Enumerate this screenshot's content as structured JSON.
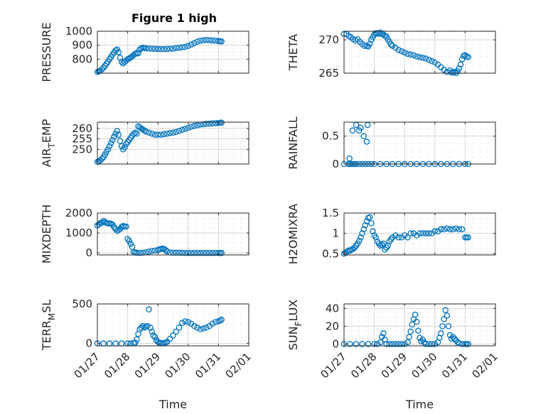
{
  "figure": {
    "title": "Figure 1 high"
  },
  "colors": {
    "marker": "#0072bd",
    "axis": "#262626",
    "grid": "#d6d6d6",
    "minor_grid": "#e6e6e6"
  },
  "x_axis": {
    "label": "Time",
    "ticks": [
      0,
      1,
      2,
      3,
      4,
      5
    ],
    "tick_labels": [
      "01/27",
      "01/28",
      "01/29",
      "01/30",
      "01/31",
      "02/01"
    ],
    "range_days": [
      0,
      5
    ]
  },
  "chart_data": [
    {
      "type": "scatter",
      "name": "PRESSURE",
      "ylabel": "PRESSURE",
      "ylim": [
        700,
        1000
      ],
      "yticks": [
        800,
        900,
        1000
      ],
      "x": [
        0.0,
        0.05,
        0.1,
        0.15,
        0.2,
        0.25,
        0.3,
        0.35,
        0.4,
        0.45,
        0.5,
        0.55,
        0.6,
        0.65,
        0.7,
        0.75,
        0.8,
        0.85,
        0.9,
        0.95,
        1.0,
        1.05,
        1.1,
        1.15,
        1.2,
        1.25,
        1.3,
        1.35,
        1.4,
        1.45,
        1.5,
        1.55,
        1.6,
        1.7,
        1.8,
        1.9,
        2.0,
        2.1,
        2.2,
        2.3,
        2.4,
        2.5,
        2.6,
        2.7,
        2.8,
        2.9,
        3.0,
        3.1,
        3.2,
        3.3,
        3.4,
        3.5,
        3.6,
        3.7,
        3.8,
        3.9,
        4.0,
        4.05,
        4.1
      ],
      "values": [
        708,
        712,
        718,
        728,
        738,
        752,
        768,
        782,
        800,
        815,
        832,
        848,
        862,
        870,
        850,
        810,
        780,
        770,
        780,
        790,
        800,
        805,
        812,
        820,
        830,
        838,
        845,
        842,
        870,
        878,
        882,
        880,
        878,
        876,
        875,
        874,
        873,
        872,
        872,
        873,
        875,
        875,
        880,
        882,
        885,
        888,
        895,
        905,
        915,
        925,
        932,
        935,
        938,
        936,
        934,
        932,
        930,
        928,
        926
      ]
    },
    {
      "type": "scatter",
      "name": "THETA",
      "ylabel": "THETA",
      "ylim": [
        265,
        271.3
      ],
      "yticks": [
        265,
        270
      ],
      "x": [
        0.0,
        0.08,
        0.15,
        0.22,
        0.3,
        0.38,
        0.45,
        0.52,
        0.6,
        0.68,
        0.75,
        0.8,
        0.85,
        0.9,
        0.95,
        1.0,
        1.05,
        1.1,
        1.15,
        1.2,
        1.25,
        1.3,
        1.35,
        1.4,
        1.45,
        1.5,
        1.55,
        1.6,
        1.7,
        1.8,
        1.9,
        2.0,
        2.1,
        2.2,
        2.3,
        2.4,
        2.5,
        2.6,
        2.7,
        2.8,
        2.9,
        3.0,
        3.1,
        3.2,
        3.3,
        3.4,
        3.5,
        3.55,
        3.6,
        3.65,
        3.7,
        3.75,
        3.8,
        3.85,
        3.9,
        3.95,
        4.0,
        4.05,
        4.1
      ],
      "values": [
        270.9,
        270.9,
        270.6,
        270.4,
        270.1,
        269.9,
        270.1,
        269.7,
        269.4,
        269.1,
        269.1,
        269.0,
        269.4,
        270.0,
        270.4,
        270.8,
        271.0,
        271.0,
        270.9,
        271.1,
        270.9,
        270.8,
        270.6,
        270.5,
        270.1,
        269.7,
        269.3,
        269.1,
        268.8,
        268.5,
        268.3,
        268.1,
        267.9,
        267.8,
        267.7,
        267.5,
        267.4,
        267.3,
        267.2,
        267.0,
        266.8,
        266.6,
        266.3,
        265.9,
        265.5,
        265.2,
        265.4,
        265.1,
        265.1,
        265.2,
        265.0,
        265.3,
        265.7,
        266.3,
        267.1,
        267.6,
        267.7,
        267.5,
        267.4
      ]
    },
    {
      "type": "scatter",
      "name": "AIR_TEMP",
      "ylabel": "AIR_TEMP",
      "ylabel_main": "AIR",
      "ylabel_sub": "T",
      "ylabel_rest": "EMP",
      "ylim": [
        243,
        263
      ],
      "yticks": [
        250,
        255,
        260
      ],
      "x": [
        0.0,
        0.05,
        0.1,
        0.15,
        0.2,
        0.25,
        0.3,
        0.35,
        0.4,
        0.45,
        0.5,
        0.55,
        0.6,
        0.65,
        0.7,
        0.75,
        0.8,
        0.85,
        0.9,
        0.95,
        1.0,
        1.05,
        1.1,
        1.15,
        1.2,
        1.25,
        1.3,
        1.35,
        1.4,
        1.45,
        1.5,
        1.55,
        1.6,
        1.7,
        1.8,
        1.9,
        2.0,
        2.1,
        2.2,
        2.3,
        2.4,
        2.5,
        2.6,
        2.7,
        2.8,
        2.9,
        3.0,
        3.1,
        3.2,
        3.3,
        3.4,
        3.5,
        3.6,
        3.7,
        3.8,
        3.9,
        4.0,
        4.05,
        4.1
      ],
      "values": [
        244.0,
        244.3,
        244.8,
        245.5,
        246.3,
        247.5,
        248.8,
        250.0,
        251.5,
        253.0,
        254.5,
        256.0,
        257.5,
        258.8,
        257.0,
        254.0,
        251.5,
        250.0,
        251.0,
        252.5,
        253.5,
        254.5,
        255.5,
        256.5,
        257.5,
        258.0,
        257.5,
        261.0,
        260.5,
        260.0,
        259.5,
        259.0,
        258.5,
        258.0,
        257.5,
        257.0,
        257.0,
        257.0,
        257.2,
        257.5,
        257.8,
        258.0,
        258.3,
        258.8,
        259.3,
        259.8,
        260.3,
        260.8,
        261.2,
        261.5,
        261.8,
        262.0,
        262.2,
        262.3,
        262.4,
        262.5,
        262.6,
        262.7,
        262.8
      ]
    },
    {
      "type": "scatter",
      "name": "RAINFALL",
      "ylabel": "RAINFALL",
      "ylim": [
        0,
        0.75
      ],
      "yticks": [
        0,
        0.5
      ],
      "x": [
        0.0,
        0.15,
        0.2,
        0.25,
        0.3,
        0.35,
        0.4,
        0.5,
        0.6,
        0.7,
        0.8,
        0.9,
        1.0,
        1.2,
        1.4,
        1.6,
        1.8,
        2.0,
        2.2,
        2.4,
        2.6,
        2.8,
        3.0,
        3.2,
        3.4,
        3.6,
        3.8,
        4.0,
        4.1,
        0.18,
        0.28,
        0.4,
        0.5,
        0.55,
        0.65,
        0.75,
        0.78
      ],
      "values": [
        0,
        0,
        0,
        0,
        0,
        0,
        0,
        0,
        0,
        0,
        0,
        0,
        0,
        0,
        0,
        0,
        0,
        0,
        0,
        0,
        0,
        0,
        0,
        0,
        0,
        0,
        0,
        0,
        0,
        0.1,
        0.6,
        0.7,
        0.6,
        0.65,
        0.5,
        0.4,
        0.7
      ]
    },
    {
      "type": "scatter",
      "name": "MIXDEPTH",
      "ylabel": "MIXDEPTH",
      "ylim": [
        -100,
        2000
      ],
      "yticks": [
        0,
        1000,
        2000
      ],
      "x": [
        0.0,
        0.05,
        0.1,
        0.15,
        0.2,
        0.25,
        0.3,
        0.35,
        0.4,
        0.45,
        0.5,
        0.55,
        0.6,
        0.65,
        0.7,
        0.75,
        0.8,
        0.85,
        0.9,
        0.95,
        1.0,
        1.05,
        1.1,
        1.15,
        1.2,
        1.25,
        1.3,
        1.4,
        1.5,
        1.6,
        1.7,
        1.8,
        1.9,
        2.0,
        2.05,
        2.1,
        2.15,
        2.2,
        2.25,
        2.3,
        2.4,
        2.5,
        2.6,
        2.7,
        2.8,
        2.9,
        3.0,
        3.1,
        3.2,
        3.3,
        3.4,
        3.5,
        3.6,
        3.7,
        3.8,
        3.9,
        4.0,
        4.05,
        4.1
      ],
      "values": [
        1380,
        1430,
        1500,
        1520,
        1600,
        1550,
        1500,
        1480,
        1480,
        1460,
        1420,
        1300,
        1200,
        1100,
        1150,
        1200,
        1300,
        1350,
        1330,
        1320,
        700,
        600,
        450,
        300,
        50,
        20,
        10,
        0,
        10,
        30,
        60,
        100,
        120,
        150,
        180,
        200,
        220,
        200,
        150,
        80,
        20,
        10,
        10,
        10,
        5,
        0,
        0,
        0,
        0,
        0,
        0,
        0,
        0,
        0,
        0,
        0,
        0,
        0,
        0
      ]
    },
    {
      "type": "scatter",
      "name": "H2OMIXRA",
      "ylabel": "H2OMIXRA",
      "ylim": [
        0.47,
        1.5
      ],
      "yticks": [
        0.5,
        1,
        1.5
      ],
      "x": [
        0.0,
        0.05,
        0.1,
        0.15,
        0.2,
        0.25,
        0.3,
        0.35,
        0.4,
        0.45,
        0.5,
        0.55,
        0.6,
        0.65,
        0.7,
        0.75,
        0.8,
        0.85,
        0.9,
        0.95,
        1.0,
        1.05,
        1.1,
        1.15,
        1.2,
        1.25,
        1.3,
        1.35,
        1.4,
        1.45,
        1.5,
        1.55,
        1.6,
        1.7,
        1.8,
        1.9,
        2.0,
        2.1,
        2.2,
        2.3,
        2.4,
        2.5,
        2.6,
        2.7,
        2.8,
        2.9,
        3.0,
        3.1,
        3.2,
        3.3,
        3.4,
        3.5,
        3.6,
        3.7,
        3.8,
        3.9,
        4.0,
        4.05,
        4.1
      ],
      "values": [
        0.5,
        0.52,
        0.55,
        0.58,
        0.58,
        0.6,
        0.62,
        0.65,
        0.7,
        0.75,
        0.82,
        0.9,
        1.0,
        1.1,
        1.2,
        1.3,
        1.38,
        1.4,
        1.25,
        1.05,
        0.95,
        0.9,
        0.8,
        0.75,
        0.7,
        0.72,
        0.75,
        0.6,
        0.65,
        0.7,
        0.8,
        0.85,
        0.9,
        0.95,
        0.9,
        0.9,
        0.95,
        0.9,
        1.0,
        1.0,
        0.95,
        1.0,
        1.0,
        1.0,
        1.0,
        1.0,
        1.05,
        1.05,
        1.1,
        1.1,
        1.12,
        1.1,
        1.1,
        1.12,
        1.1,
        1.1,
        0.9,
        0.9,
        0.9
      ]
    },
    {
      "type": "scatter",
      "name": "TERR_MSL",
      "ylabel": "TERR_MSL",
      "ylabel_main": "TERR",
      "ylabel_sub": "M",
      "ylabel_rest": "SL",
      "ylim": [
        -30,
        500
      ],
      "yticks": [
        0,
        500
      ],
      "x": [
        0.0,
        0.2,
        0.4,
        0.6,
        0.8,
        1.0,
        1.1,
        1.2,
        1.25,
        1.3,
        1.35,
        1.4,
        1.45,
        1.5,
        1.55,
        1.6,
        1.65,
        1.7,
        1.75,
        1.8,
        1.85,
        1.9,
        1.95,
        2.0,
        2.05,
        2.1,
        2.15,
        2.2,
        2.25,
        2.3,
        2.4,
        2.5,
        2.6,
        2.7,
        2.8,
        2.9,
        3.0,
        3.1,
        3.2,
        3.3,
        3.4,
        3.5,
        3.6,
        3.7,
        3.8,
        3.9,
        4.0,
        4.05,
        4.1
      ],
      "values": [
        0,
        0,
        0,
        0,
        0,
        0,
        0,
        5,
        10,
        50,
        120,
        180,
        200,
        220,
        200,
        210,
        220,
        430,
        200,
        150,
        100,
        80,
        40,
        20,
        10,
        5,
        5,
        5,
        10,
        20,
        60,
        100,
        150,
        200,
        260,
        280,
        270,
        250,
        220,
        200,
        180,
        190,
        200,
        220,
        250,
        270,
        280,
        290,
        300
      ]
    },
    {
      "type": "scatter",
      "name": "SUN_FLUX",
      "ylabel": "SUN_FLUX",
      "ylabel_main": "SUN",
      "ylabel_sub": "F",
      "ylabel_rest": "LUX",
      "ylim": [
        -2,
        45
      ],
      "yticks": [
        0,
        20,
        40
      ],
      "x": [
        0.0,
        0.2,
        0.4,
        0.6,
        0.8,
        1.0,
        1.1,
        1.2,
        1.25,
        1.3,
        1.35,
        1.4,
        1.5,
        1.6,
        1.7,
        1.8,
        1.9,
        2.0,
        2.1,
        2.15,
        2.2,
        2.25,
        2.3,
        2.35,
        2.4,
        2.45,
        2.5,
        2.55,
        2.6,
        2.65,
        2.7,
        2.8,
        2.9,
        3.0,
        3.1,
        3.15,
        3.2,
        3.25,
        3.3,
        3.35,
        3.4,
        3.45,
        3.5,
        3.55,
        3.6,
        3.65,
        3.7,
        3.75,
        3.8,
        3.9,
        4.0,
        4.05,
        4.1
      ],
      "values": [
        0,
        0,
        0,
        0,
        0,
        0,
        0,
        2,
        8,
        12,
        5,
        0,
        0,
        0,
        0,
        0,
        0,
        0,
        2,
        8,
        14,
        22,
        28,
        33,
        25,
        15,
        7,
        3,
        5,
        2,
        0,
        0,
        0,
        0,
        2,
        7,
        12,
        20,
        28,
        38,
        32,
        20,
        10,
        6,
        8,
        6,
        4,
        2,
        1,
        0,
        0,
        0,
        0
      ]
    }
  ]
}
